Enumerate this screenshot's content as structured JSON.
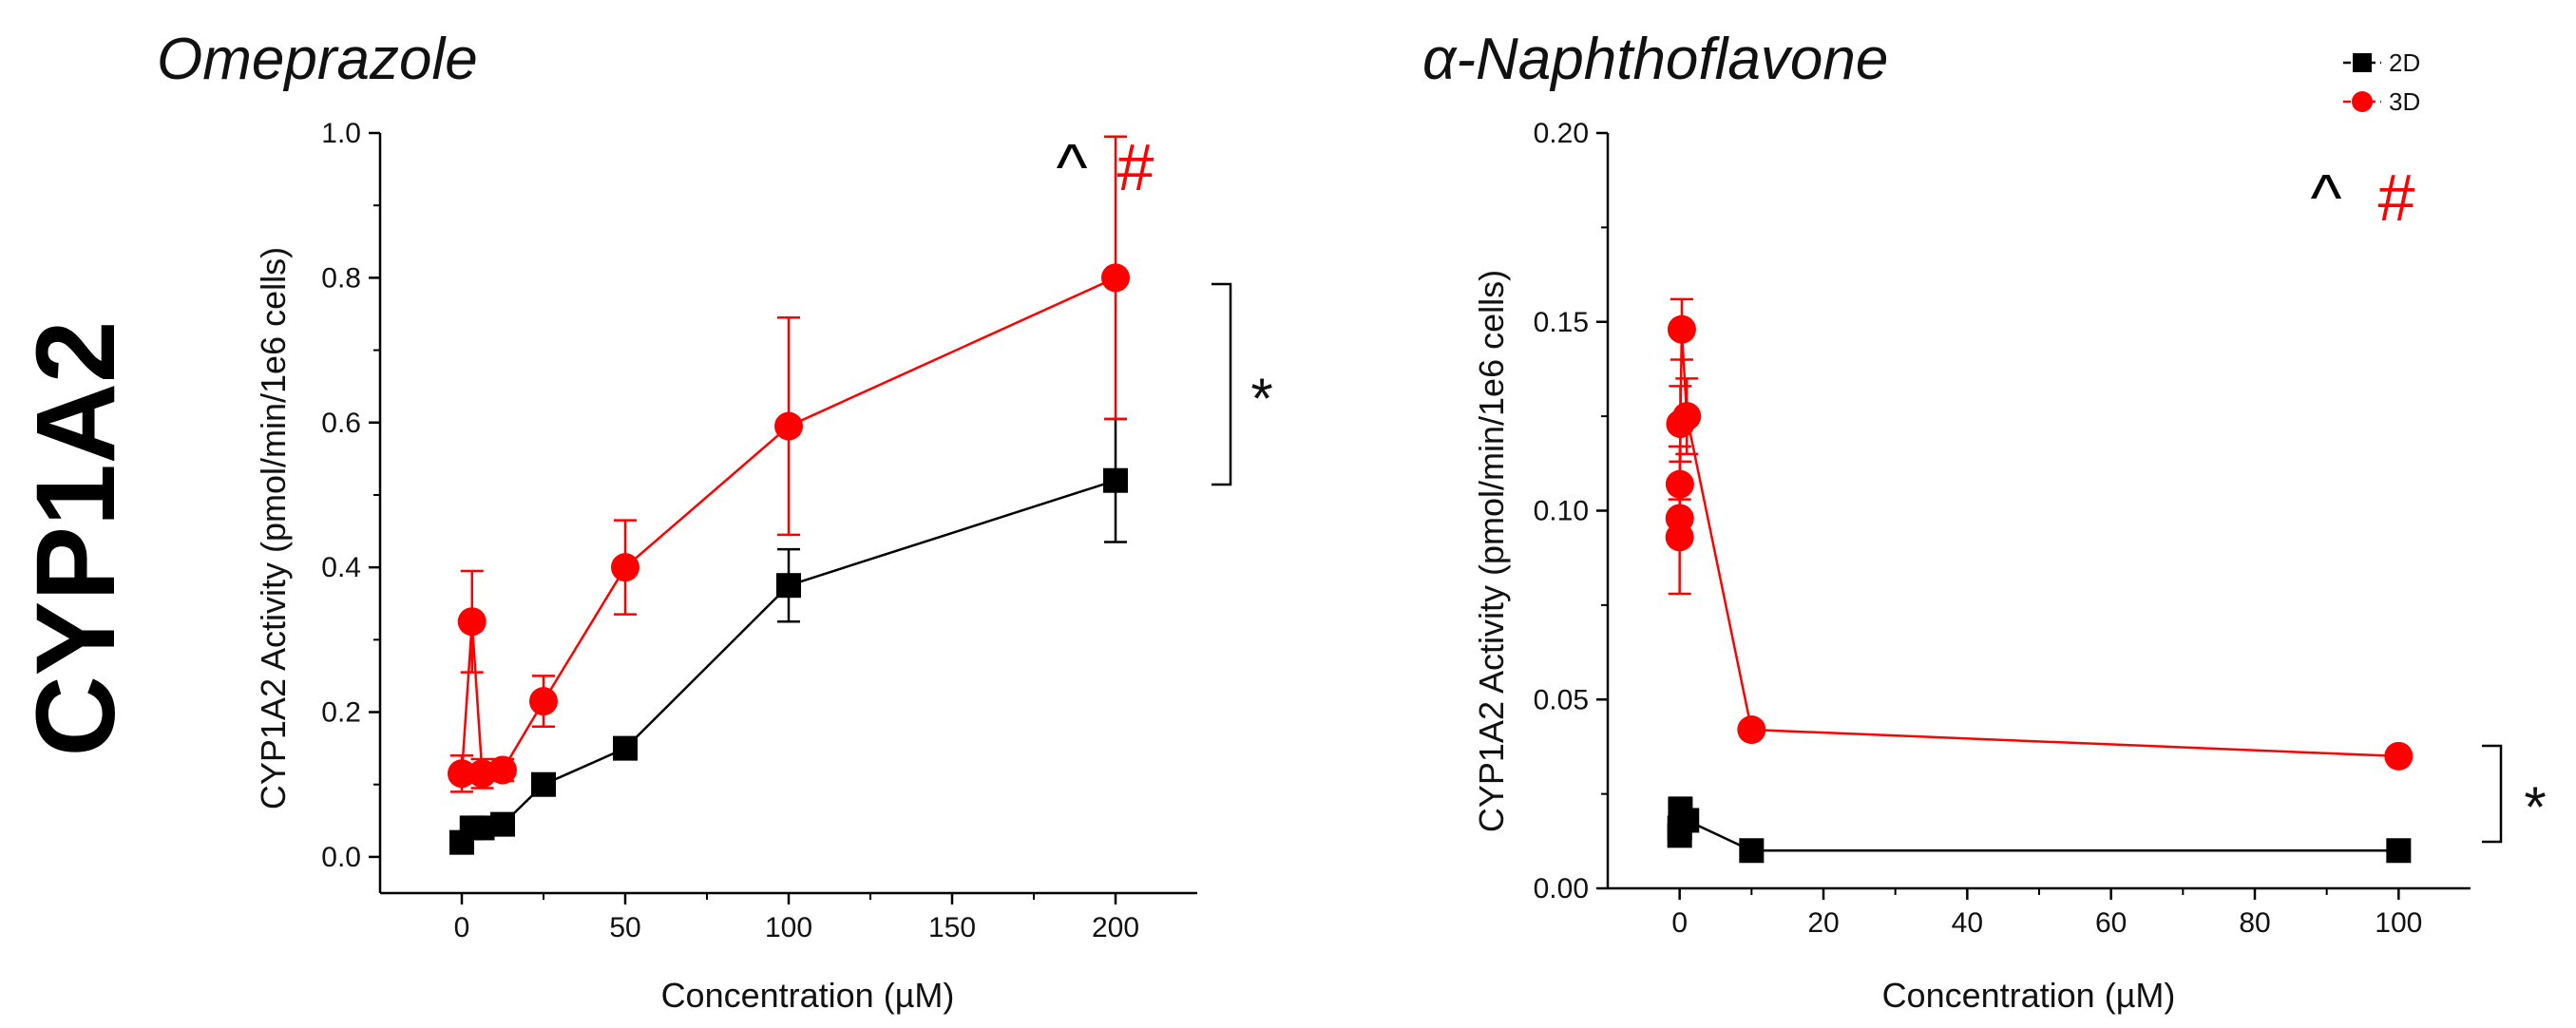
{
  "row_label": "CYP1A2",
  "colors": {
    "2D": "#000000",
    "3D": "#ff0000",
    "axis": "#000000"
  },
  "chart_data": [
    {
      "type": "line",
      "title": "Omeprazole",
      "xlabel": "Concentration (µM)",
      "ylabel": "CYP1A2 Activity (pmol/min/1e6 cells)",
      "xlim": [
        -25,
        225
      ],
      "ylim": [
        -0.05,
        1.0
      ],
      "xticks": [
        0,
        50,
        100,
        150,
        200
      ],
      "yticks": [
        0.0,
        0.2,
        0.4,
        0.6,
        0.8,
        1.0
      ],
      "ytick_labels": [
        "0.0",
        "0.2",
        "0.4",
        "0.6",
        "0.8",
        "1.0"
      ],
      "series": [
        {
          "name": "2D",
          "x": [
            0,
            3.125,
            6.25,
            12.5,
            25,
            50,
            100,
            200
          ],
          "y": [
            0.02,
            0.04,
            0.04,
            0.045,
            0.1,
            0.15,
            0.375,
            0.52
          ],
          "err": [
            0.01,
            0.01,
            0.01,
            0.01,
            0.015,
            0.015,
            0.05,
            0.085
          ],
          "marker": "square"
        },
        {
          "name": "3D",
          "x": [
            0,
            3.125,
            6.25,
            12.5,
            25,
            50,
            100,
            200
          ],
          "y": [
            0.115,
            0.325,
            0.115,
            0.12,
            0.215,
            0.4,
            0.595,
            0.8
          ],
          "err": [
            0.025,
            0.07,
            0.02,
            0.015,
            0.035,
            0.065,
            0.15,
            0.195
          ],
          "marker": "circle"
        }
      ],
      "annotations": {
        "caret": "^",
        "hash": "#",
        "significance": "*"
      }
    },
    {
      "type": "line",
      "title": "α-Naphthoflavone",
      "xlabel": "Concentration (µM)",
      "ylabel": "CYP1A2 Activity (pmol/min/1e6 cells)",
      "xlim": [
        -10,
        110
      ],
      "ylim": [
        0,
        0.2
      ],
      "xticks": [
        0,
        20,
        40,
        60,
        80,
        100
      ],
      "yticks": [
        0.0,
        0.05,
        0.1,
        0.15,
        0.2
      ],
      "ytick_labels": [
        "0.00",
        "0.05",
        "0.10",
        "0.15",
        "0.20"
      ],
      "series": [
        {
          "name": "2D",
          "x": [
            0,
            0.01,
            0.1,
            1,
            10,
            100
          ],
          "y": [
            0.014,
            0.016,
            0.021,
            0.018,
            0.01,
            0.01
          ],
          "err": [
            0.002,
            0.002,
            0.003,
            0.002,
            0.001,
            0.001
          ],
          "marker": "square"
        },
        {
          "name": "3D",
          "x": [
            0,
            0.01,
            0.03,
            0.1,
            0.3,
            1,
            10,
            100
          ],
          "y": [
            0.093,
            0.098,
            0.107,
            0.123,
            0.148,
            0.125,
            0.042,
            0.035
          ],
          "err": [
            0.015,
            0.005,
            0.01,
            0.01,
            0.008,
            0.01,
            0.002,
            0.002
          ],
          "marker": "circle"
        }
      ],
      "legend": [
        "2D",
        "3D"
      ],
      "legend_position": "top-right",
      "annotations": {
        "caret": "^",
        "hash": "#",
        "significance": "*"
      }
    }
  ]
}
